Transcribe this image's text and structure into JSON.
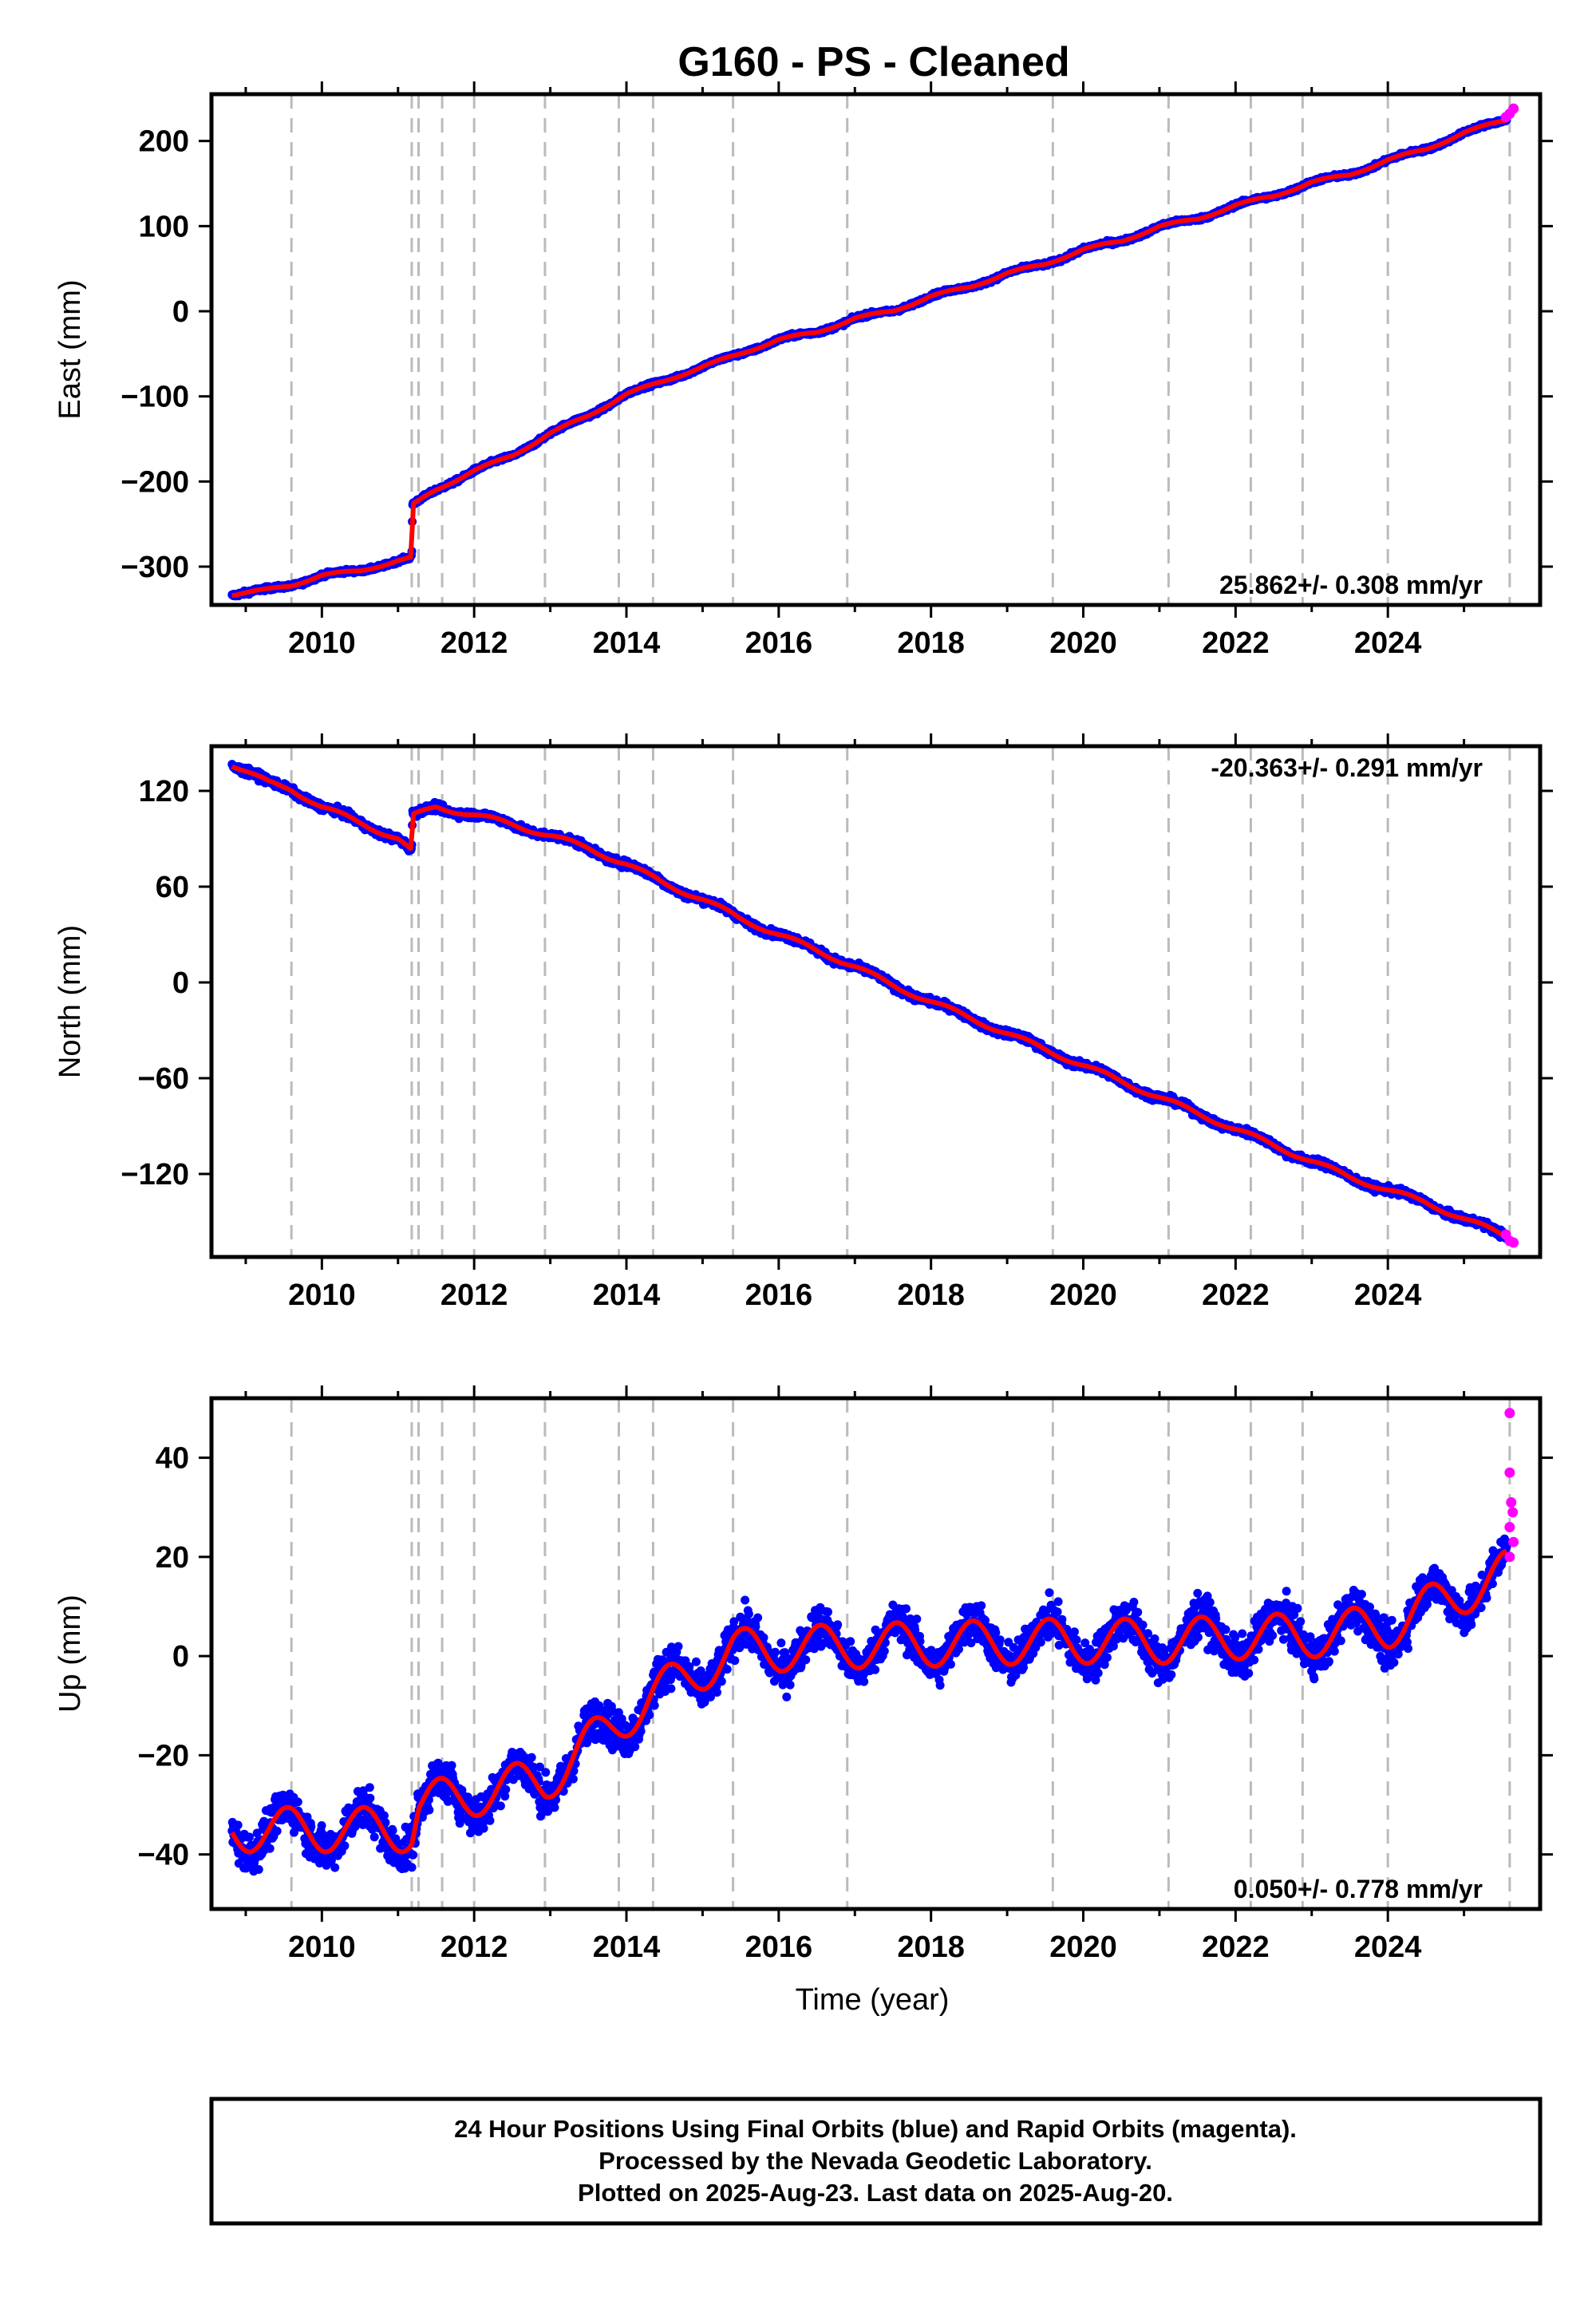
{
  "colors": {
    "final": "#0000ff",
    "rapid": "#ff00ff",
    "model": "#ff0000",
    "epoch": "#bbbbbb",
    "frame": "#000000"
  },
  "chart_data": {
    "type": "scatter",
    "title": "G160  - PS - Cleaned",
    "xlabel": "Time (year)",
    "xlim": [
      2008.55,
      2026.0
    ],
    "xticks": [
      "2010",
      "2012",
      "2014",
      "2016",
      "2018",
      "2020",
      "2022",
      "2024"
    ],
    "epoch_lines": [
      2009.6,
      2011.18,
      2011.27,
      2011.58,
      2012.0,
      2012.93,
      2013.9,
      2014.35,
      2015.4,
      2016.9,
      2019.6,
      2021.12,
      2022.2,
      2022.88,
      2024.0,
      2025.6
    ],
    "panels": [
      {
        "ylabel": "East (mm)",
        "ylim": [
          -345,
          255
        ],
        "yticks": [
          "200",
          "100",
          "0",
          "−100",
          "−200",
          "−300"
        ],
        "rate": "25.862+/- 0.308 mm/yr",
        "rate_position": "bottom-right",
        "series": [
          {
            "points": [
              [
                2008.8,
                -333
              ],
              [
                2009.3,
                -327
              ],
              [
                2009.6,
                -322
              ],
              [
                2010.0,
                -310
              ],
              [
                2010.5,
                -305
              ],
              [
                2011.0,
                -293
              ],
              [
                2011.18,
                -290
              ],
              [
                2011.19,
                -228
              ],
              [
                2011.5,
                -210
              ],
              [
                2012.0,
                -187
              ],
              [
                2012.5,
                -170
              ],
              [
                2013.0,
                -143
              ],
              [
                2013.5,
                -123
              ],
              [
                2014.0,
                -97
              ],
              [
                2014.5,
                -82
              ],
              [
                2015.0,
                -65
              ],
              [
                2015.5,
                -50
              ],
              [
                2016.0,
                -33
              ],
              [
                2016.5,
                -25
              ],
              [
                2017.0,
                -8
              ],
              [
                2017.5,
                0
              ],
              [
                2018.0,
                18
              ],
              [
                2018.5,
                28
              ],
              [
                2019.0,
                45
              ],
              [
                2019.5,
                55
              ],
              [
                2020.0,
                73
              ],
              [
                2020.5,
                82
              ],
              [
                2021.0,
                100
              ],
              [
                2021.5,
                108
              ],
              [
                2022.0,
                125
              ],
              [
                2022.5,
                135
              ],
              [
                2023.0,
                152
              ],
              [
                2023.5,
                160
              ],
              [
                2024.0,
                178
              ],
              [
                2024.5,
                190
              ],
              [
                2025.0,
                210
              ],
              [
                2025.6,
                226
              ]
            ]
          }
        ],
        "rapid_points": [
          [
            2025.55,
            228
          ],
          [
            2025.6,
            232
          ],
          [
            2025.65,
            238
          ]
        ]
      },
      {
        "ylabel": "North (mm)",
        "ylim": [
          -172,
          148
        ],
        "yticks": [
          "120",
          "60",
          "0",
          "−60",
          "−120"
        ],
        "rate": "-20.363+/- 0.291 mm/yr",
        "rate_position": "top-right",
        "series": [
          {
            "points": [
              [
                2008.8,
                137
              ],
              [
                2009.3,
                125
              ],
              [
                2009.6,
                121
              ],
              [
                2010.0,
                110
              ],
              [
                2010.5,
                100
              ],
              [
                2011.0,
                90
              ],
              [
                2011.18,
                82
              ],
              [
                2011.19,
                104
              ],
              [
                2011.5,
                110
              ],
              [
                2012.0,
                105
              ],
              [
                2012.5,
                99
              ],
              [
                2013.0,
                92
              ],
              [
                2013.5,
                84
              ],
              [
                2014.0,
                74
              ],
              [
                2014.5,
                62
              ],
              [
                2015.0,
                52
              ],
              [
                2015.5,
                40
              ],
              [
                2016.0,
                30
              ],
              [
                2016.5,
                20
              ],
              [
                2017.0,
                10
              ],
              [
                2017.5,
                -2
              ],
              [
                2018.0,
                -12
              ],
              [
                2018.5,
                -22
              ],
              [
                2019.0,
                -32
              ],
              [
                2019.5,
                -42
              ],
              [
                2020.0,
                -52
              ],
              [
                2020.5,
                -62
              ],
              [
                2021.0,
                -72
              ],
              [
                2021.5,
                -82
              ],
              [
                2022.0,
                -92
              ],
              [
                2022.5,
                -102
              ],
              [
                2023.0,
                -112
              ],
              [
                2023.5,
                -122
              ],
              [
                2024.0,
                -130
              ],
              [
                2024.5,
                -138
              ],
              [
                2025.0,
                -148
              ],
              [
                2025.6,
                -160
              ]
            ]
          }
        ],
        "rapid_points": [
          [
            2025.55,
            -158
          ],
          [
            2025.6,
            -162
          ],
          [
            2025.65,
            -163
          ]
        ]
      },
      {
        "ylabel": "Up (mm)",
        "ylim": [
          -51,
          52
        ],
        "yticks": [
          "40",
          "20",
          "0",
          "−20",
          "−40"
        ],
        "rate": "0.050+/- 0.778 mm/yr",
        "rate_position": "bottom-right",
        "series": [
          {
            "model": "annual",
            "segments": [
              [
                2008.8,
                -35
              ],
              [
                2009.6,
                -35
              ],
              [
                2011.18,
                -35
              ],
              [
                2011.27,
                -30
              ],
              [
                2012.93,
                -25
              ],
              [
                2013.9,
                -13
              ],
              [
                2014.35,
                -8
              ],
              [
                2015.4,
                1
              ],
              [
                2016.9,
                2
              ],
              [
                2019.6,
                3
              ],
              [
                2021.12,
                3
              ],
              [
                2022.2,
                4
              ],
              [
                2022.88,
                4
              ],
              [
                2024.0,
                6
              ],
              [
                2024.7,
                11
              ],
              [
                2025.6,
                17
              ]
            ],
            "amplitude": 4.5
          }
        ],
        "rapid_points": [
          [
            2025.6,
            49
          ],
          [
            2025.6,
            37
          ],
          [
            2025.62,
            31
          ],
          [
            2025.64,
            29
          ],
          [
            2025.6,
            26
          ],
          [
            2025.65,
            23
          ],
          [
            2025.6,
            20
          ]
        ]
      }
    ]
  },
  "footer": {
    "line1": "24 Hour Positions Using Final Orbits (blue) and Rapid Orbits (magenta).",
    "line2": "Processed by the Nevada Geodetic Laboratory.",
    "line3": "Plotted on 2025-Aug-23. Last data on 2025-Aug-20."
  }
}
